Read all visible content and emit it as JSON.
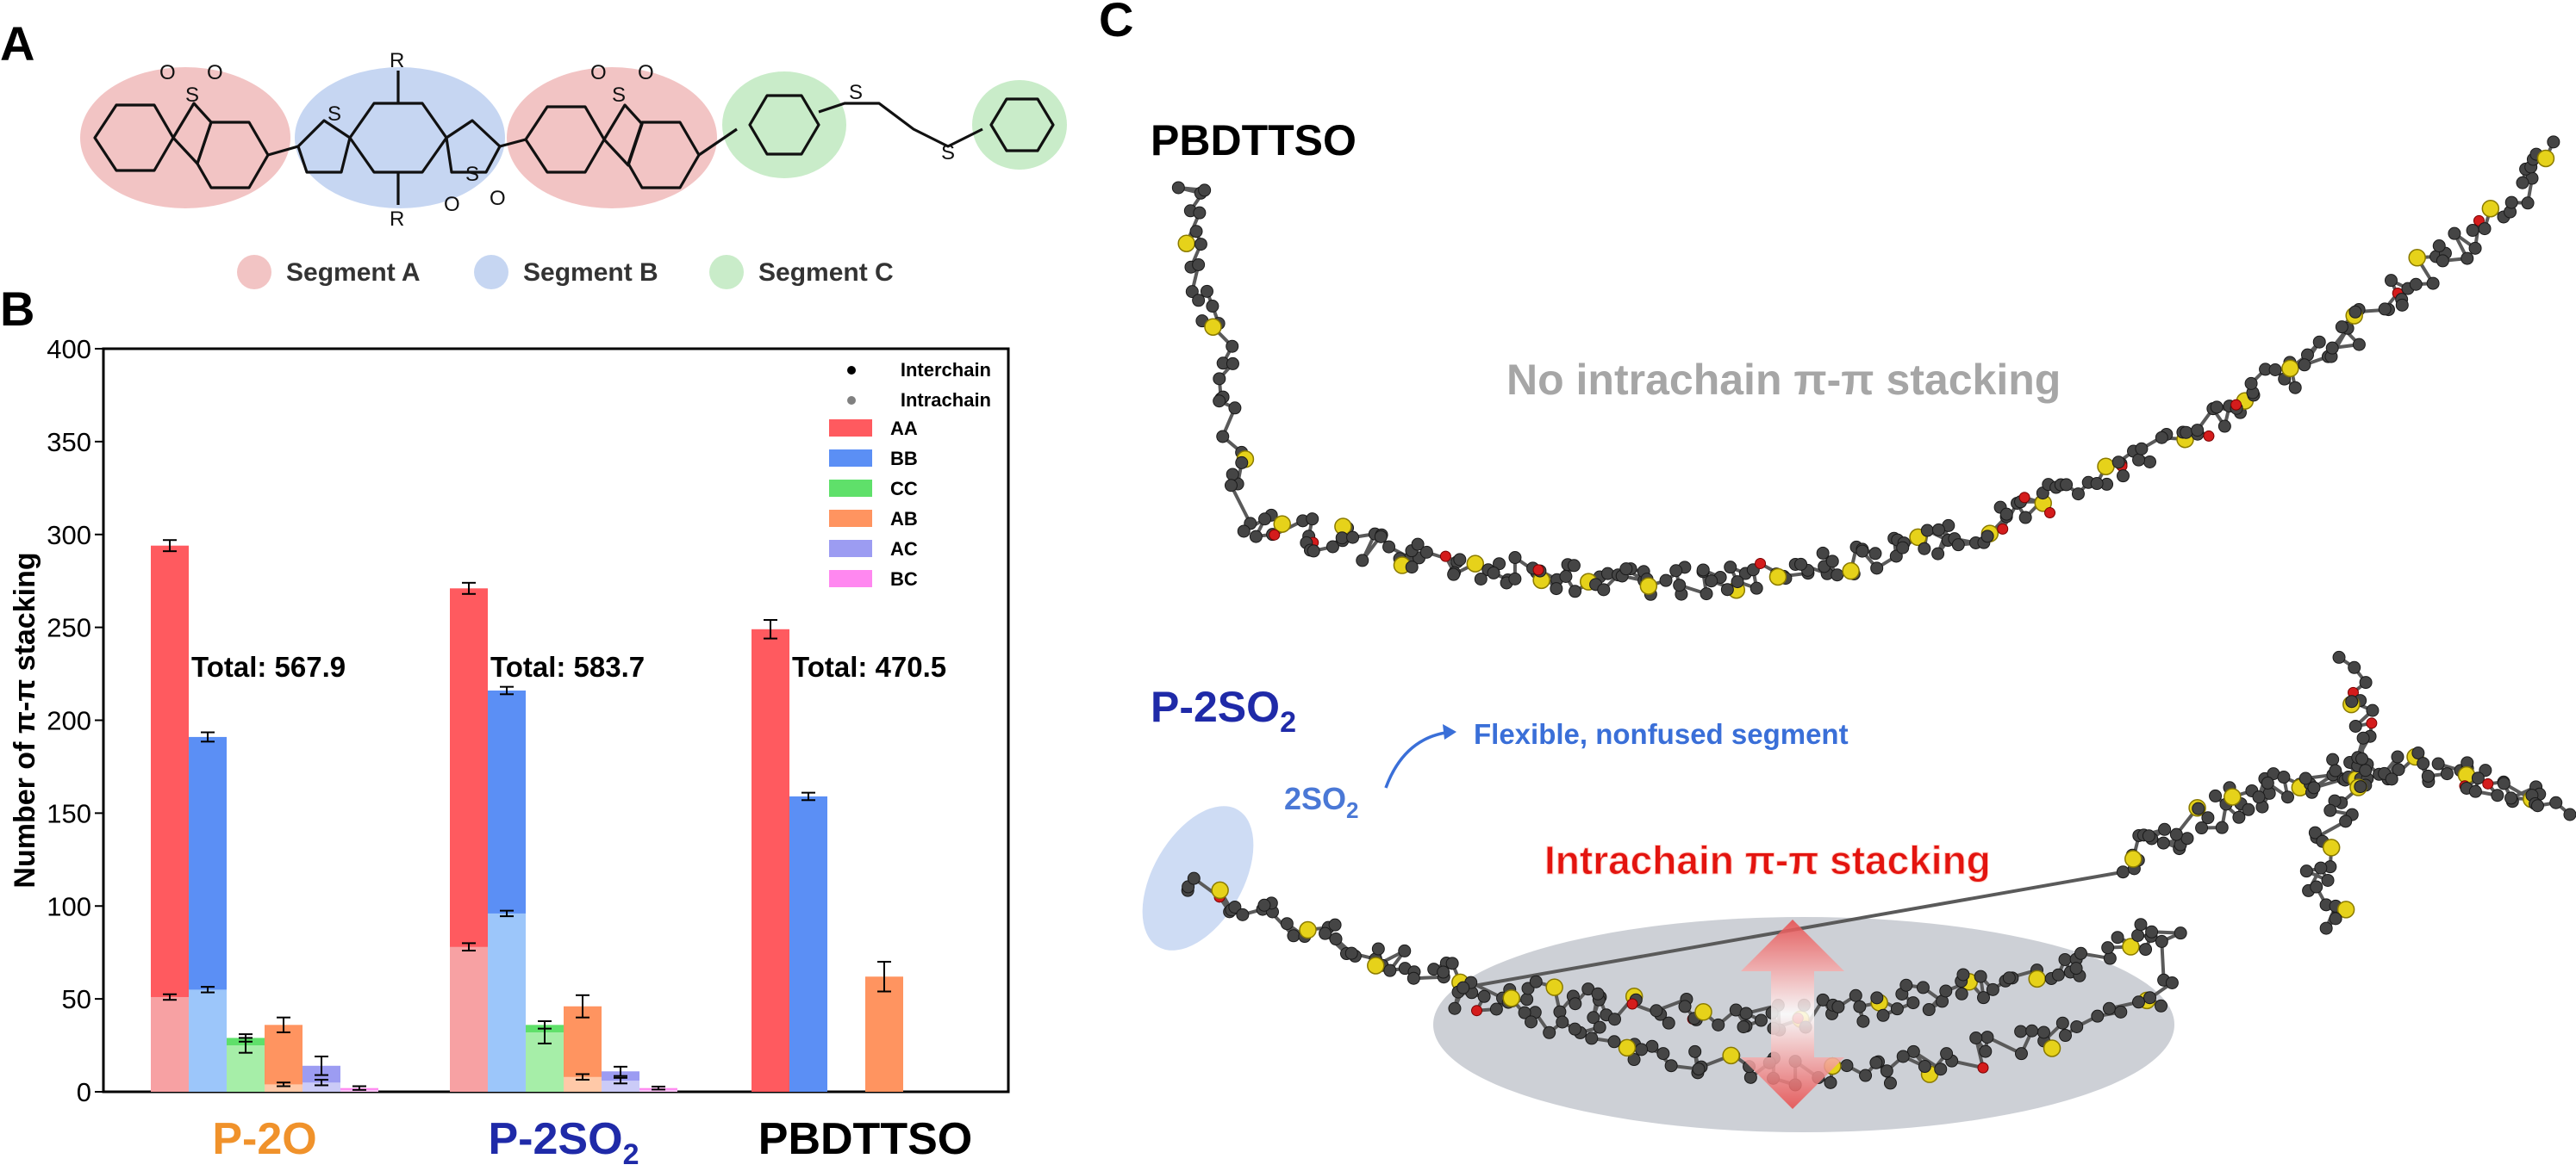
{
  "panels": {
    "a": "A",
    "b": "B",
    "c": "C"
  },
  "segments": [
    {
      "label": "Segment A",
      "color": "#f2c4c4"
    },
    {
      "label": "Segment B",
      "color": "#c6d6f2"
    },
    {
      "label": "Segment C",
      "color": "#c9ecc9"
    }
  ],
  "chem_labels": {
    "s": "S",
    "o": "O",
    "r": "R"
  },
  "chart_data": {
    "type": "bar",
    "ylabel": "Number of π-π stacking",
    "ylim": [
      0,
      400
    ],
    "yticks": [
      0,
      50,
      100,
      150,
      200,
      250,
      300,
      350,
      400
    ],
    "categories": [
      "P-2O",
      "P-2SO",
      "PBDTTSO"
    ],
    "category_subscripts": [
      "",
      "2",
      ""
    ],
    "category_colors": [
      "#f0922b",
      "#1f2aa8",
      "#000000"
    ],
    "totals": [
      "Total: 567.9",
      "Total: 583.7",
      "Total: 470.5"
    ],
    "legend_markers": [
      {
        "label": "Interchain",
        "color": "#000000"
      },
      {
        "label": "Intrachain",
        "color": "#808080"
      }
    ],
    "series": [
      {
        "name": "AA",
        "color": "#ff5a5f",
        "light": "#f7a1a3",
        "values": [
          294,
          271,
          249
        ],
        "errors": [
          3,
          3,
          5
        ],
        "intrachain": [
          51,
          78,
          0
        ],
        "intrachain_errors": [
          1.5,
          2,
          0
        ]
      },
      {
        "name": "BB",
        "color": "#5b8ff5",
        "light": "#9cc6fa",
        "values": [
          191,
          216,
          159
        ],
        "errors": [
          2.5,
          2,
          2
        ],
        "intrachain": [
          55,
          96,
          0
        ],
        "intrachain_errors": [
          1.5,
          1.5,
          0
        ]
      },
      {
        "name": "CC",
        "color": "#5fe06a",
        "light": "#a6eea8",
        "values": [
          29,
          36,
          null
        ],
        "errors": [
          2,
          2,
          0
        ],
        "intrachain": [
          25,
          32,
          0
        ],
        "intrachain_errors": [
          4,
          6,
          0
        ]
      },
      {
        "name": "AB",
        "color": "#ff9460",
        "light": "#ffc9a8",
        "values": [
          36,
          46,
          62
        ],
        "errors": [
          4,
          6,
          8
        ],
        "intrachain": [
          4,
          8,
          0
        ],
        "intrachain_errors": [
          1,
          1.5,
          0
        ]
      },
      {
        "name": "AC",
        "color": "#9c9cf2",
        "light": "#cbcbf7",
        "values": [
          14,
          11,
          null
        ],
        "errors": [
          5,
          2.5,
          0
        ],
        "intrachain": [
          5,
          6,
          0
        ],
        "intrachain_errors": [
          1.5,
          1.5,
          0
        ]
      },
      {
        "name": "BC",
        "color": "#ff88f0",
        "light": "#ffc4f7",
        "values": [
          2,
          2,
          null
        ],
        "errors": [
          1,
          0.8,
          0
        ],
        "intrachain": [
          1,
          1,
          0
        ],
        "intrachain_errors": [
          0,
          0,
          0
        ]
      }
    ]
  },
  "panel_c": {
    "top_title": "PBDTTSO",
    "top_note": "No intrachain π-π stacking",
    "bottom_title_main": "P-2SO",
    "bottom_title_sub": "2",
    "so2_main": "2SO",
    "so2_sub": "2",
    "flexible_note": "Flexible, nonfused segment",
    "intrachain_note": "Intrachain π-π stacking",
    "colors": {
      "title_blue": "#1f2aa8",
      "note_gray": "#a6a6a6",
      "flex_blue": "#3a6fd8",
      "so2_blue": "#4a78d6",
      "intrachain_red": "#e3140f",
      "carbon": "#454545",
      "sulfur": "#e6d21a",
      "oxygen": "#d41c1c"
    }
  }
}
